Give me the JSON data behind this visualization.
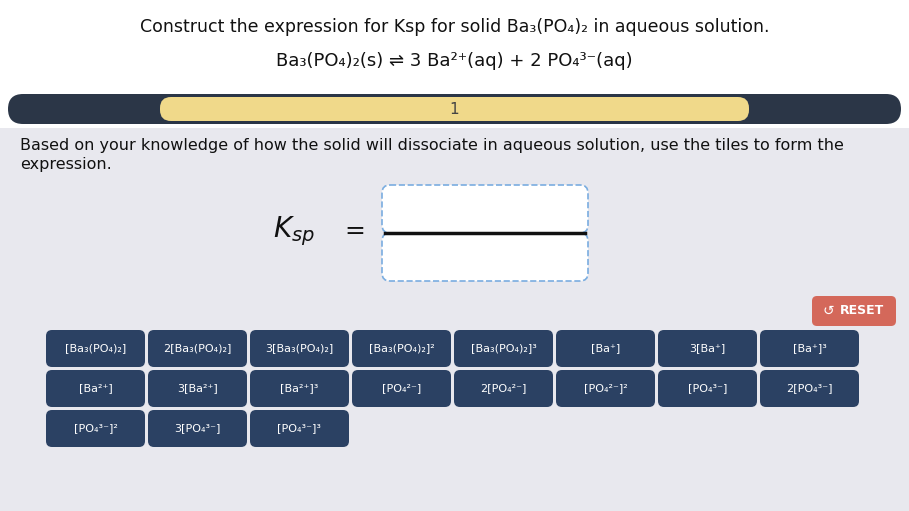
{
  "title": "Construct the expression for Ksp for solid Ba₃(PO₄)₂ in aqueous solution.",
  "equation": "Ba₃(PO₄)₂(s) ⇌ 3 Ba²⁺(aq) + 2 PO₄³⁻(aq)",
  "step_label": "1",
  "instruction_line1": "Based on your knowledge of how the solid will dissociate in aqueous solution, use the tiles to form the",
  "instruction_line2": "expression.",
  "bg_color": "#e8e8ee",
  "white_bg": "#ffffff",
  "bar_dark": "#2b3647",
  "bar_light": "#f0d98a",
  "tile_color": "#2b4163",
  "tile_text": "#ffffff",
  "reset_bg": "#d4685a",
  "reset_text": "#ffffff",
  "box_border": "#7aade0",
  "fraction_line": "#111111",
  "row1_tiles": [
    "[Ba₃(PO₄)₂]",
    "2[Ba₃(PO₄)₂]",
    "3[Ba₃(PO₄)₂]",
    "[Ba₃(PO₄)₂]²",
    "[Ba₃(PO₄)₂]³",
    "[Ba⁺]",
    "3[Ba⁺]",
    "[Ba⁺]³"
  ],
  "row2_tiles": [
    "[Ba²⁺]",
    "3[Ba²⁺]",
    "[Ba²⁺]³",
    "[PO₄²⁻]",
    "2[PO₄²⁻]",
    "[PO₄²⁻]²",
    "[PO₄³⁻]",
    "2[PO₄³⁻]"
  ],
  "row3_tiles": [
    "[PO₄³⁻]²",
    "3[PO₄³⁻]",
    "[PO₄³⁻]³"
  ],
  "fig_w": 9.09,
  "fig_h": 5.11,
  "dpi": 100
}
